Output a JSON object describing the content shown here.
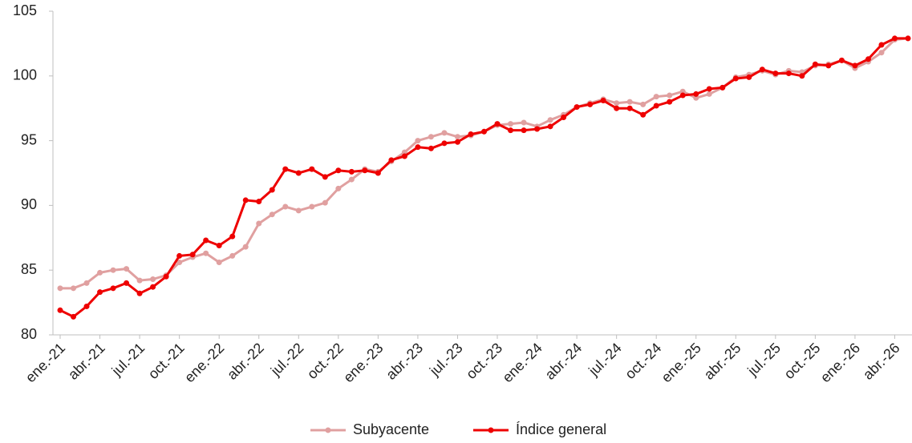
{
  "chart_data": {
    "type": "line",
    "categories": [
      "ene.-21",
      null,
      null,
      "abr.-21",
      null,
      null,
      "jul.-21",
      null,
      null,
      "oct.-21",
      null,
      null,
      "ene.-22",
      null,
      null,
      "abr.-22",
      null,
      null,
      "jul.-22",
      null,
      null,
      "oct.-22",
      null,
      null,
      "ene.-23",
      null,
      null,
      "abr.-23",
      null,
      null,
      "jul.-23",
      null,
      null,
      "oct.-23",
      null,
      null,
      "ene.-24",
      null,
      null,
      "abr.-24",
      null,
      null,
      "jul.-24",
      null,
      null,
      "oct.-24",
      null,
      null,
      "ene.-25",
      null,
      null,
      "abr.-25",
      null,
      null,
      "jul.-25",
      null,
      null,
      "oct.-25",
      null,
      null,
      "ene.-26",
      null,
      null,
      "abr.-26",
      null
    ],
    "series": [
      {
        "name": "Subyacente",
        "color": "#e0a0a0",
        "values": [
          83.6,
          83.6,
          84.0,
          84.8,
          85.0,
          85.1,
          84.2,
          84.3,
          84.6,
          85.6,
          86.0,
          86.3,
          85.6,
          86.1,
          86.8,
          88.6,
          89.3,
          89.9,
          89.6,
          89.9,
          90.2,
          91.3,
          92.0,
          92.8,
          92.6,
          93.4,
          94.1,
          95.0,
          95.3,
          95.6,
          95.3,
          95.4,
          95.7,
          96.2,
          96.3,
          96.4,
          96.1,
          96.6,
          97.0,
          97.6,
          97.9,
          98.2,
          97.9,
          98.0,
          97.8,
          98.4,
          98.5,
          98.8,
          98.3,
          98.6,
          99.1,
          99.9,
          100.1,
          100.4,
          100.1,
          100.4,
          100.3,
          100.8,
          100.9,
          101.2,
          100.6,
          101.1,
          101.8,
          102.8,
          102.9
        ]
      },
      {
        "name": "Índice general",
        "color": "#ee0000",
        "values": [
          81.9,
          81.4,
          82.2,
          83.3,
          83.6,
          84.0,
          83.2,
          83.7,
          84.5,
          86.1,
          86.2,
          87.3,
          86.9,
          87.6,
          90.4,
          90.3,
          91.2,
          92.8,
          92.5,
          92.8,
          92.2,
          92.7,
          92.6,
          92.7,
          92.5,
          93.5,
          93.8,
          94.5,
          94.4,
          94.8,
          94.9,
          95.5,
          95.7,
          96.3,
          95.8,
          95.8,
          95.9,
          96.1,
          96.8,
          97.6,
          97.8,
          98.1,
          97.5,
          97.5,
          97.0,
          97.7,
          98.0,
          98.5,
          98.6,
          99.0,
          99.1,
          99.8,
          99.9,
          100.5,
          100.2,
          100.2,
          100.0,
          100.9,
          100.8,
          101.2,
          100.8,
          101.3,
          102.4,
          102.9,
          102.9
        ]
      }
    ],
    "ylim": [
      80,
      105
    ],
    "yticks": [
      80,
      85,
      90,
      95,
      100,
      105
    ],
    "grid": false,
    "legend": "bottom"
  }
}
